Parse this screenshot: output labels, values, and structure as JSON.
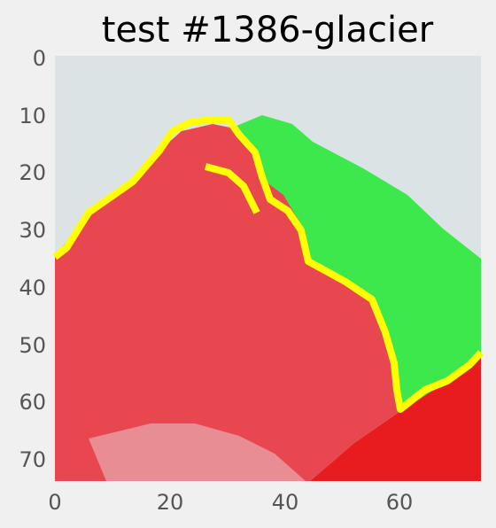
{
  "title": "test #1386-glacier",
  "colors": {
    "background": "#f0f0f0",
    "sky": "#dce3e5",
    "glacier_red": "#e8474f",
    "glacier_light": "#e88d94",
    "glacier_bright": "#e81c1e",
    "green": "#3de84c",
    "boundary_yellow": "#ffff00",
    "tick_text": "#555555"
  },
  "chart_data": {
    "type": "heatmap",
    "title": "test #1386-glacier",
    "xlabel": "",
    "ylabel": "",
    "xlim": [
      0,
      74
    ],
    "ylim": [
      74,
      0
    ],
    "grid": false,
    "xticks": [
      0,
      20,
      40,
      60
    ],
    "yticks": [
      0,
      10,
      20,
      30,
      40,
      50,
      60,
      70
    ],
    "xtick_labels": [
      "0",
      "20",
      "40",
      "60"
    ],
    "ytick_labels": [
      "0",
      "10",
      "20",
      "30",
      "40",
      "50",
      "60",
      "70"
    ]
  }
}
